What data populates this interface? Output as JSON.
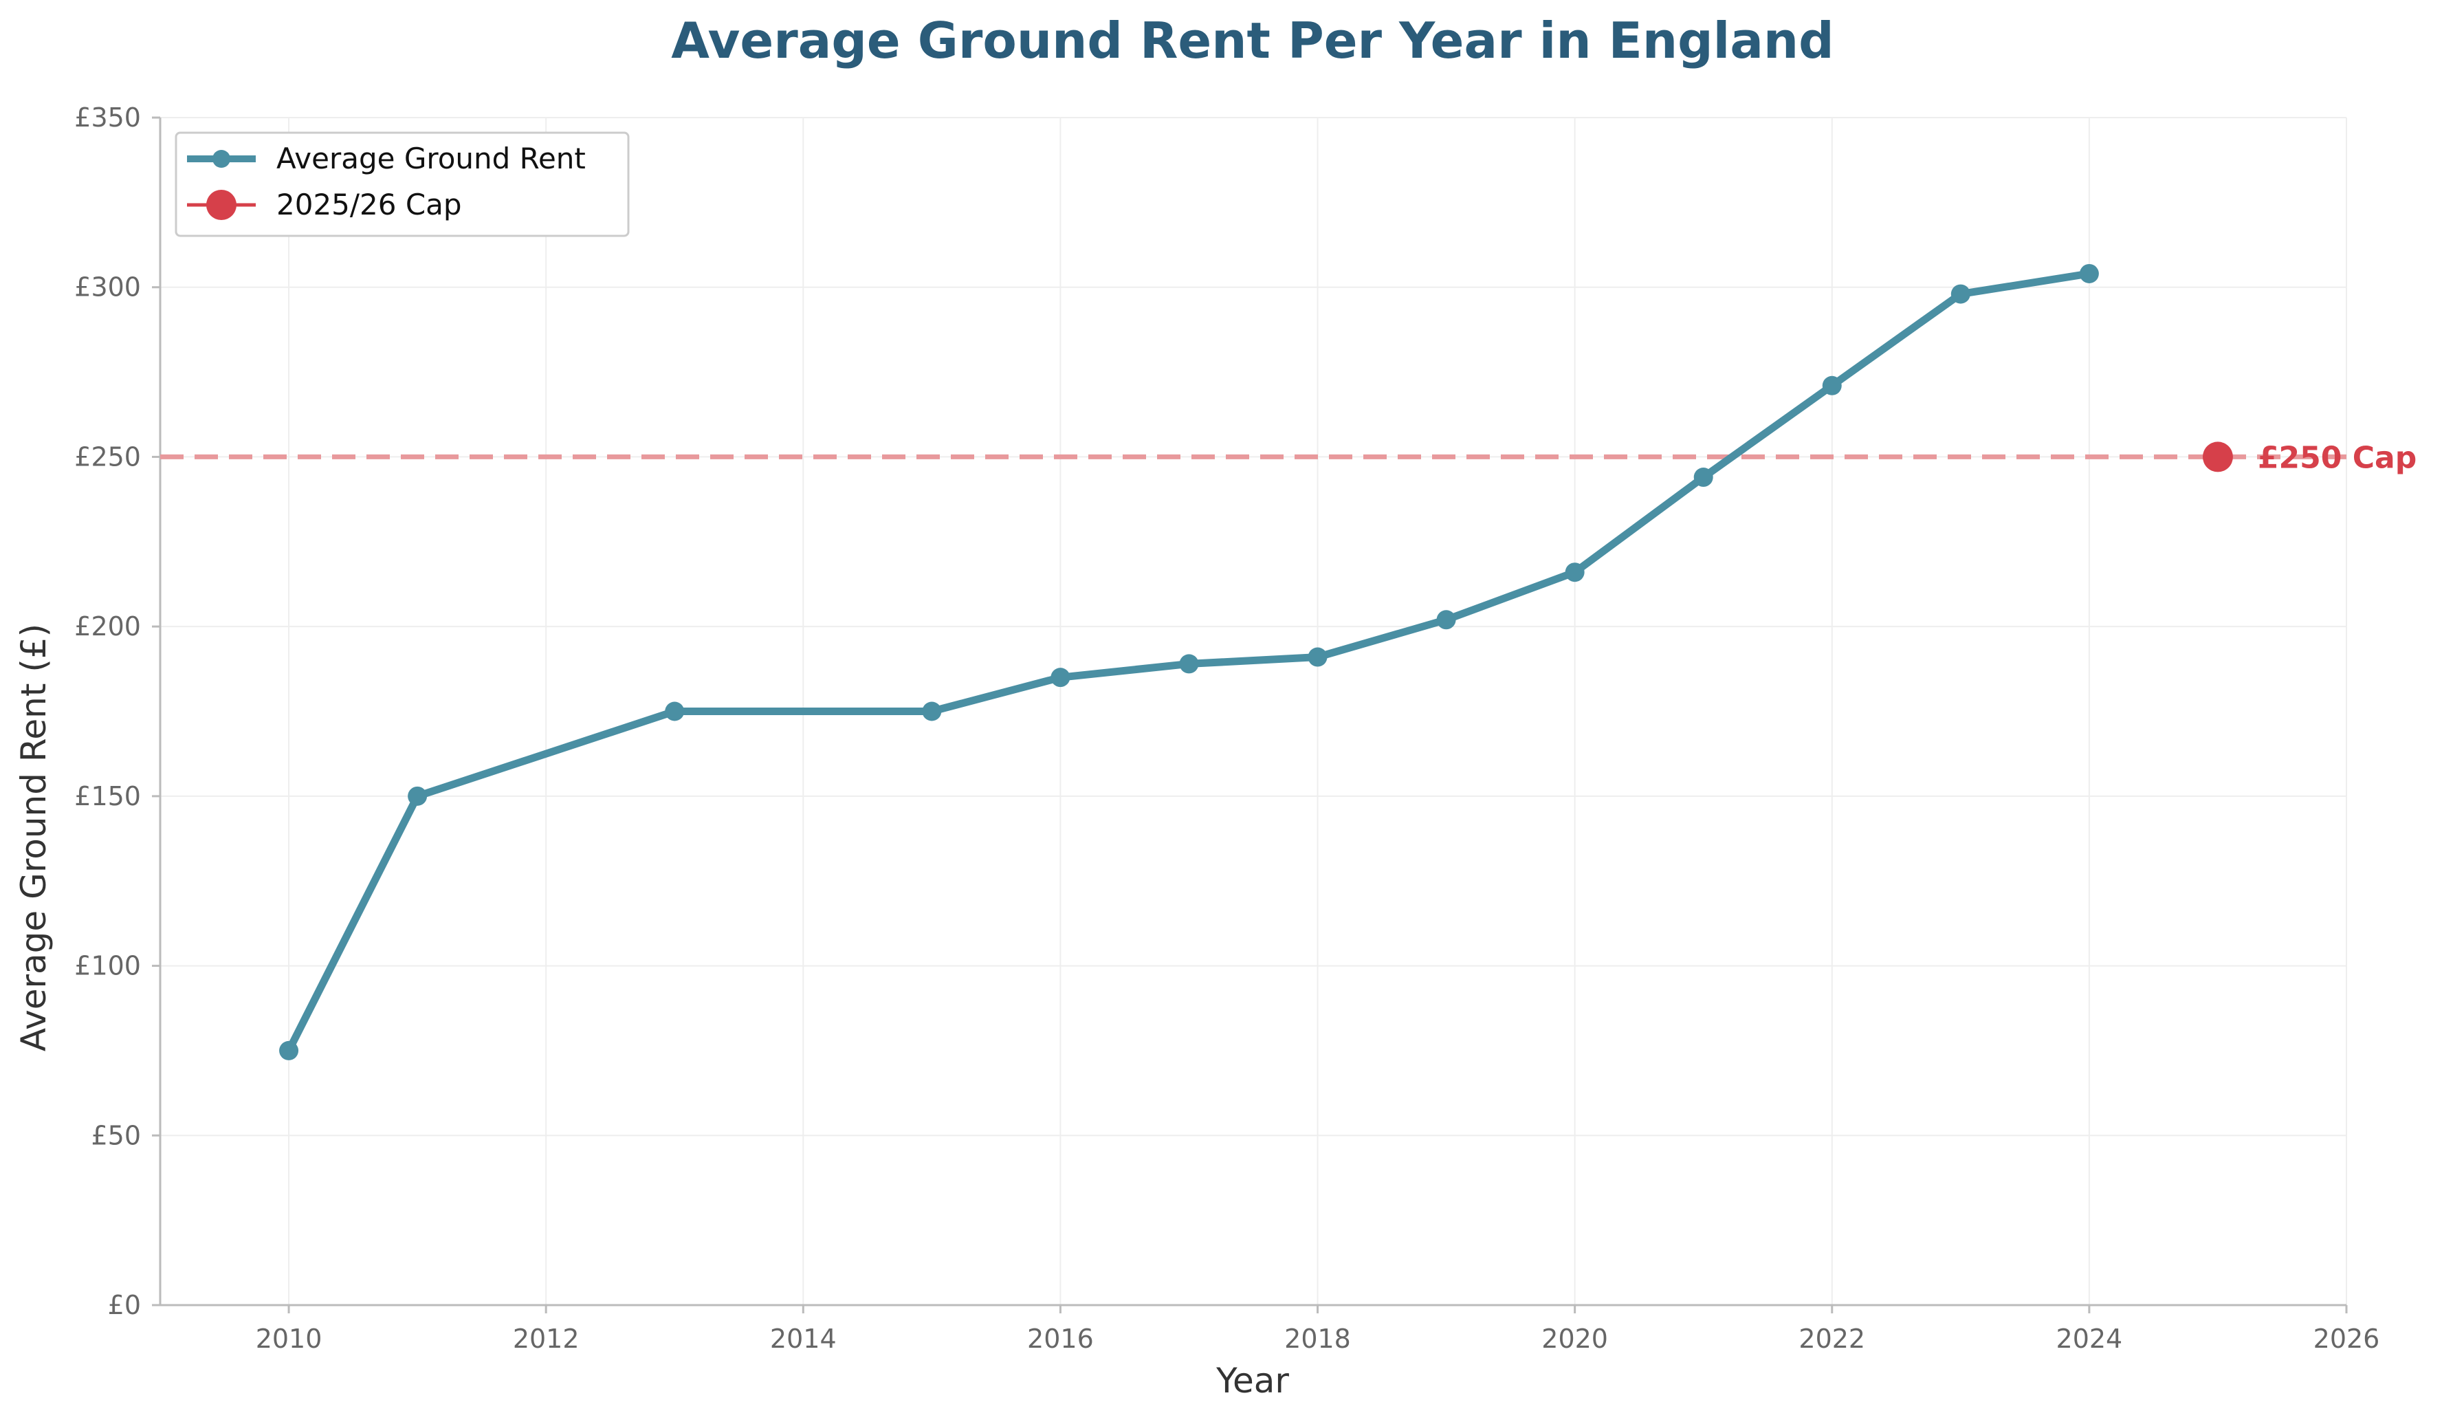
{
  "chart_data": {
    "type": "line",
    "title": "Average Ground Rent Per Year in England",
    "xlabel": "Year",
    "ylabel": "Average Ground Rent (£)",
    "xlim": [
      2009,
      2026
    ],
    "ylim": [
      0,
      350
    ],
    "x_ticks": [
      2010,
      2012,
      2014,
      2016,
      2018,
      2020,
      2022,
      2024,
      2026
    ],
    "y_ticks": [
      0,
      50,
      100,
      150,
      200,
      250,
      300,
      350
    ],
    "y_tick_labels": [
      "£0",
      "£50",
      "£100",
      "£150",
      "£200",
      "£250",
      "£300",
      "£350"
    ],
    "grid": true,
    "legend_position": "top-left",
    "series": [
      {
        "name": "Average Ground Rent",
        "color": "#4a8fa3",
        "x": [
          2010,
          2011,
          2013,
          2015,
          2016,
          2017,
          2018,
          2019,
          2020,
          2021,
          2022,
          2023,
          2024
        ],
        "values": [
          75,
          150,
          175,
          175,
          185,
          189,
          191,
          202,
          216,
          244,
          271,
          298,
          304
        ]
      }
    ],
    "reference_line": {
      "value": 250,
      "color": "#e8999c",
      "style": "dashed"
    },
    "cap_point": {
      "name": "2025/26 Cap",
      "x": 2025,
      "value": 250,
      "color": "#d6404a",
      "label": "£250 Cap"
    }
  }
}
